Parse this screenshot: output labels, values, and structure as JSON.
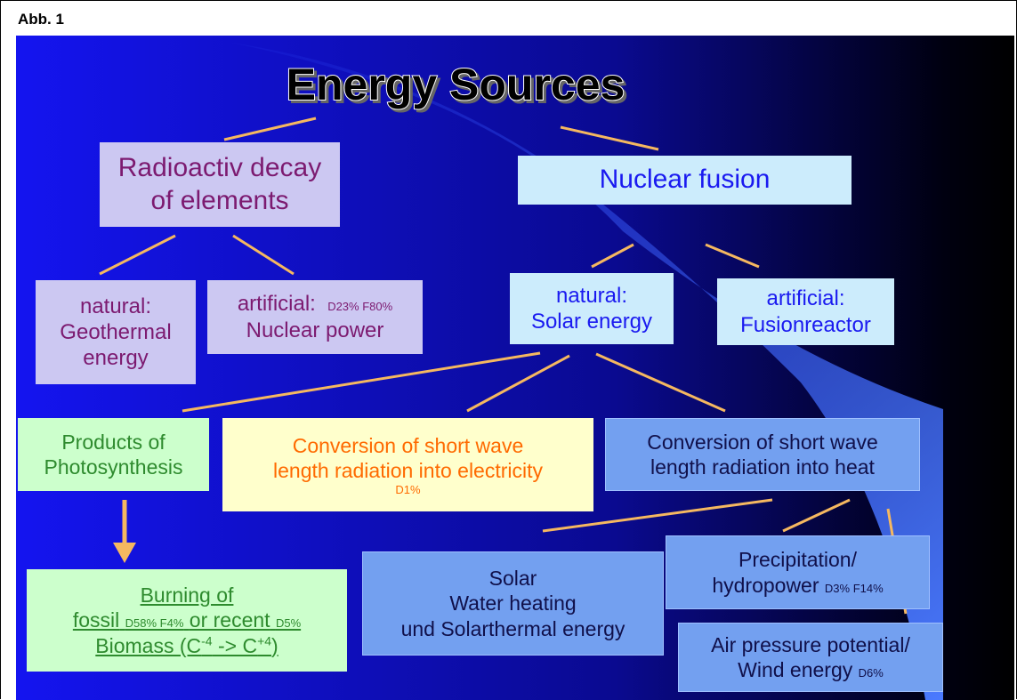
{
  "figure_label": "Abb. 1",
  "title": "Energy Sources",
  "nodes": [
    {
      "lines": [
        "Radioactiv decay",
        "of elements"
      ]
    },
    {
      "lines": [
        "Nuclear fusion"
      ]
    },
    {
      "lines": [
        "natural:",
        "Geothermal",
        "energy"
      ]
    },
    {
      "lines": [
        "artificial:",
        "Nuclear power"
      ],
      "note": "D23% F80%"
    },
    {
      "lines": [
        "natural:",
        "Solar energy"
      ]
    },
    {
      "lines": [
        "artificial:",
        "Fusionreactor"
      ]
    },
    {
      "lines": [
        "Products of",
        "Photosynthesis"
      ]
    },
    {
      "lines": [
        "Conversion of short wave",
        "length radiation into electricity"
      ],
      "note": "D1%"
    },
    {
      "lines": [
        "Conversion of short wave",
        "length radiation into heat"
      ]
    },
    {
      "parts": [
        "Burning of",
        "fossil",
        "D58% F4%",
        "or recent",
        "D5%",
        "Biomass (C",
        "-4",
        " -> C",
        "+4",
        ")"
      ]
    },
    {
      "lines": [
        "Solar",
        "Water heating",
        "und Solarthermal energy"
      ]
    },
    {
      "lines": [
        "Precipitation/",
        "hydropower"
      ],
      "note": "D3% F14%"
    },
    {
      "lines": [
        "Air pressure potential/",
        "Wind energy"
      ],
      "note": "D6%"
    }
  ]
}
